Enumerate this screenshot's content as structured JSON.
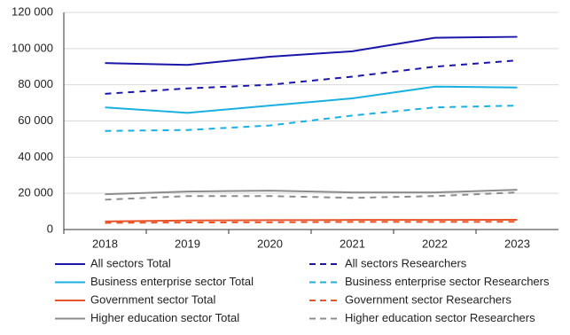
{
  "chart_data": {
    "type": "line",
    "categories": [
      "2018",
      "2019",
      "2020",
      "2021",
      "2022",
      "2023"
    ],
    "ylim": [
      0,
      120000
    ],
    "yticks": [
      0,
      {
        "value": 20000,
        "label": "20 000"
      },
      {
        "value": 40000,
        "label": "40 000"
      },
      {
        "value": 60000,
        "label": "60 000"
      },
      {
        "value": 80000,
        "label": "80 000"
      },
      {
        "value": 100000,
        "label": "100 000"
      },
      {
        "value": 120000,
        "label": "120 000"
      }
    ],
    "grid": true,
    "series": [
      {
        "name": "All sectors Total",
        "color": "#1a17a8",
        "dash": false,
        "values": [
          92000,
          91000,
          95500,
          98500,
          106000,
          106500
        ]
      },
      {
        "name": "All sectors Researchers",
        "color": "#1a17a8",
        "dash": true,
        "values": [
          75000,
          78000,
          80000,
          84500,
          90000,
          93500
        ]
      },
      {
        "name": "Business enterprise sector Total",
        "color": "#19b0e0",
        "dash": false,
        "values": [
          67500,
          64500,
          68500,
          72500,
          79000,
          78500
        ]
      },
      {
        "name": "Business enterprise sector Researchers",
        "color": "#19b0e0",
        "dash": true,
        "values": [
          54500,
          55000,
          57500,
          63000,
          67500,
          68500
        ]
      },
      {
        "name": "Government sector Total",
        "color": "#e8552a",
        "dash": false,
        "values": [
          4500,
          5000,
          5200,
          5300,
          5300,
          5400
        ]
      },
      {
        "name": "Government sector Researchers",
        "color": "#e8552a",
        "dash": true,
        "values": [
          3700,
          3900,
          4000,
          4200,
          4200,
          4300
        ]
      },
      {
        "name": "Higher education sector Total",
        "color": "#8c8c8c",
        "dash": false,
        "values": [
          19500,
          21000,
          21500,
          20500,
          20500,
          22000
        ]
      },
      {
        "name": "Higher education sector Researchers",
        "color": "#8c8c8c",
        "dash": true,
        "values": [
          16500,
          18500,
          18500,
          17500,
          18500,
          20500
        ]
      }
    ]
  }
}
